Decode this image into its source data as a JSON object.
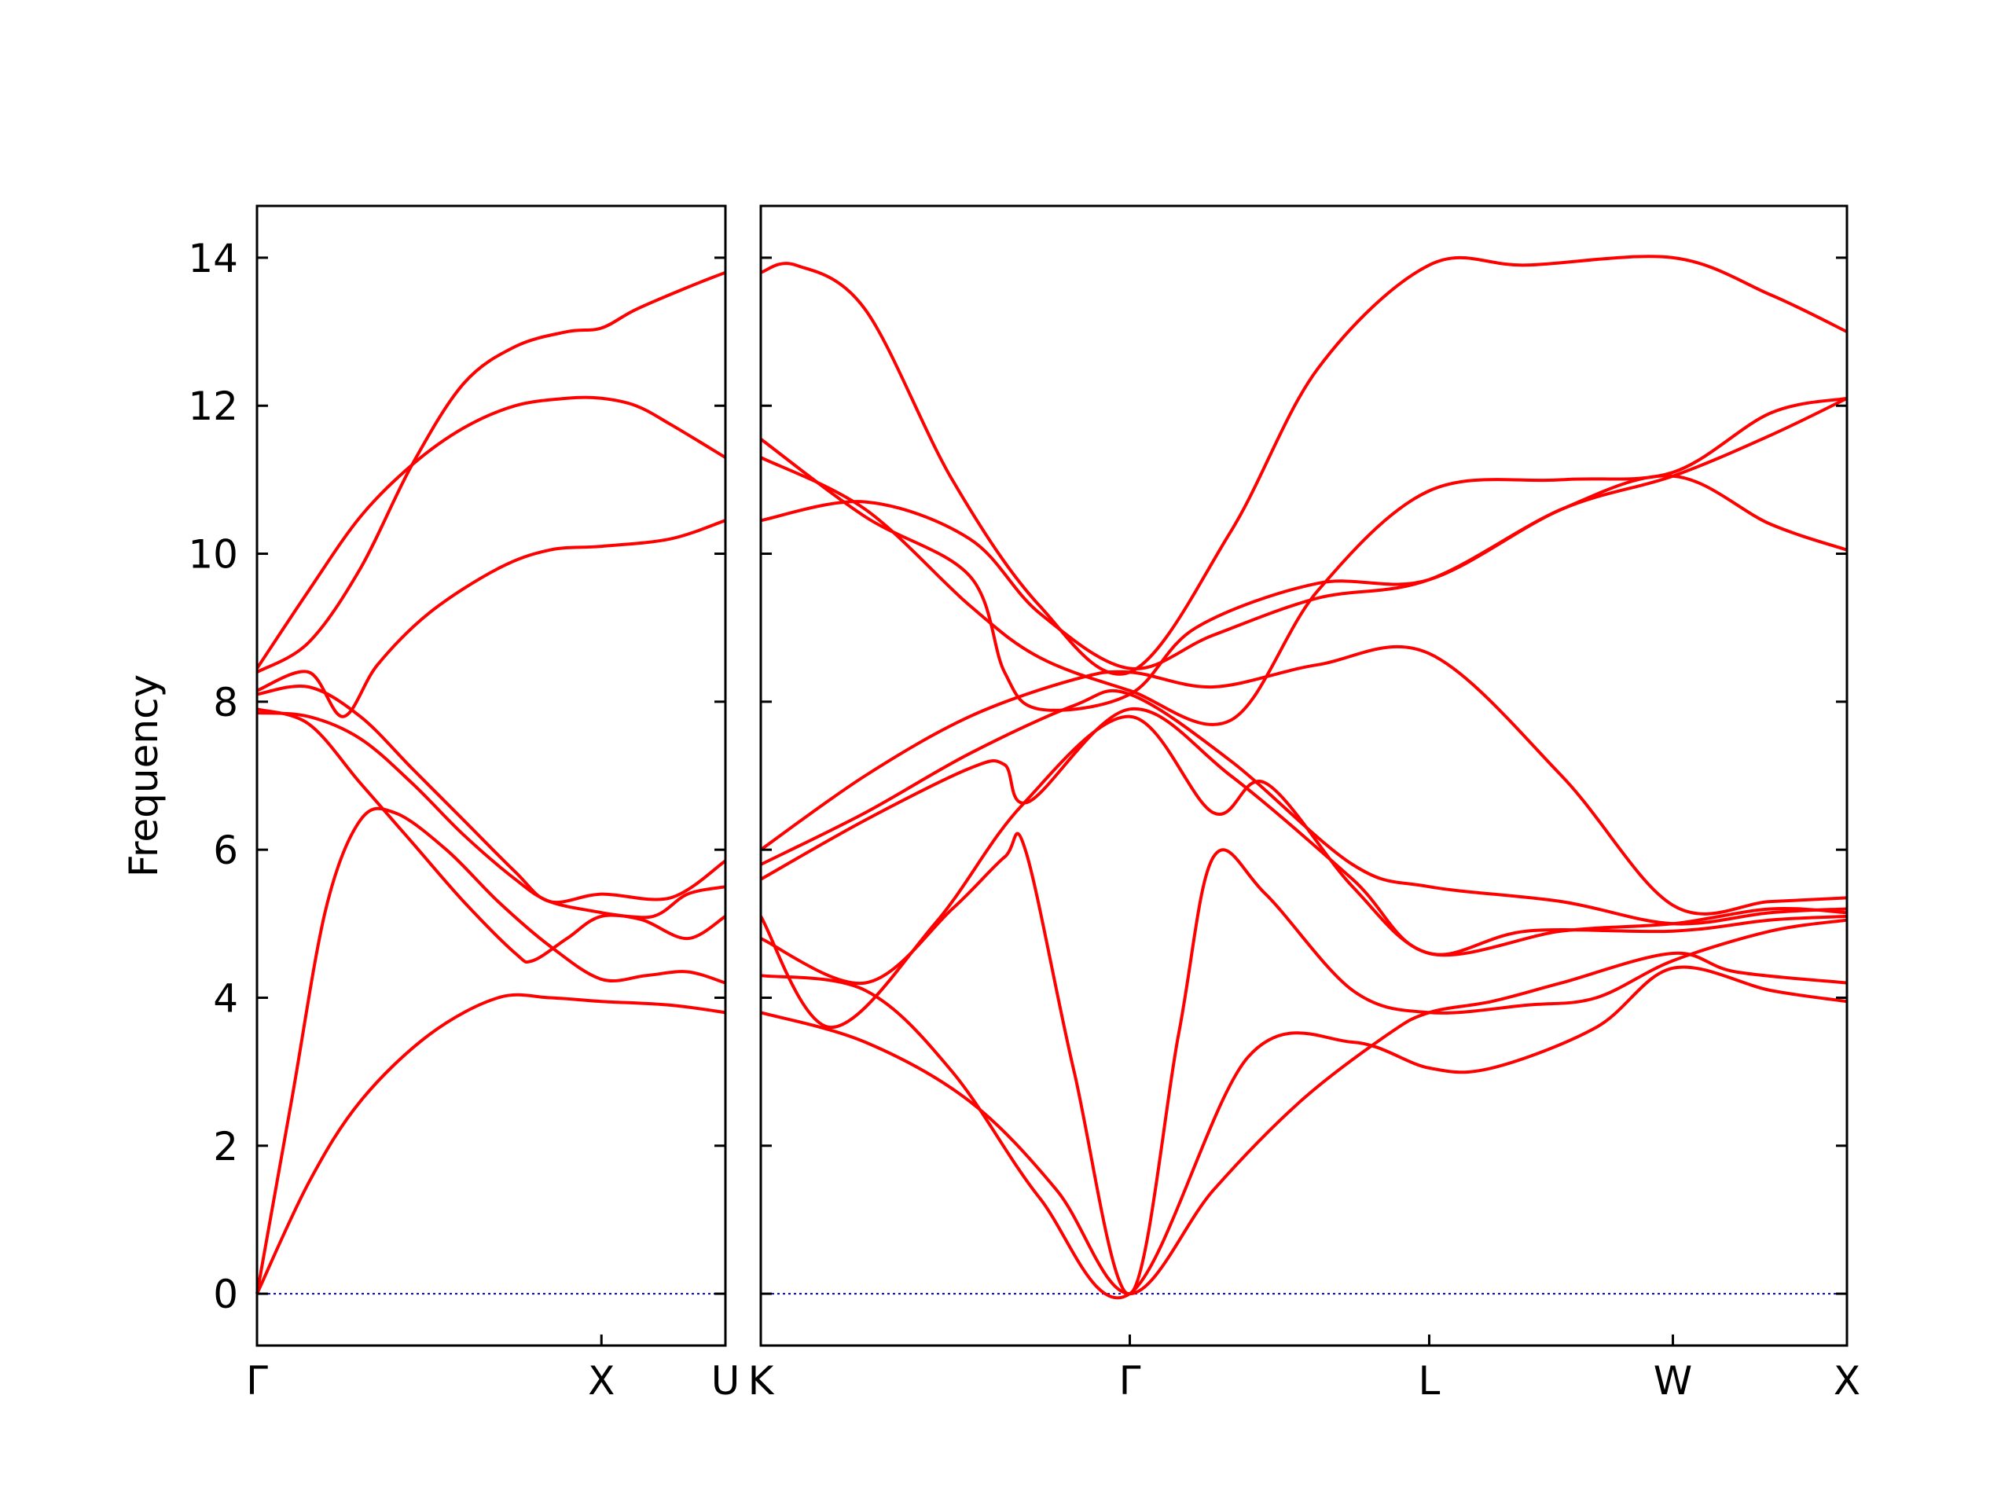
{
  "chart_data": {
    "type": "line",
    "title": "",
    "ylabel": "Frequency",
    "xlabel": "",
    "ylim": [
      -0.7,
      14.7
    ],
    "yticks": [
      0,
      2,
      4,
      6,
      8,
      10,
      12,
      14
    ],
    "line_color": "#ff0000",
    "zero_line_color": "#0000cc",
    "panels": [
      {
        "id": "panel-1",
        "xticks": [
          {
            "x": 0.0,
            "label": "Γ"
          },
          {
            "x": 1.0,
            "label": "X"
          },
          {
            "x": 1.36,
            "label": "U"
          }
        ],
        "series": [
          {
            "values": [
              [
                0,
                0
              ],
              [
                0.1,
                2.6
              ],
              [
                0.2,
                5.2
              ],
              [
                0.3,
                6.4
              ],
              [
                0.4,
                6.5
              ],
              [
                0.55,
                6.0
              ],
              [
                0.7,
                5.3
              ],
              [
                0.85,
                4.7
              ],
              [
                1.0,
                4.25
              ],
              [
                1.13,
                4.3
              ],
              [
                1.25,
                4.35
              ],
              [
                1.36,
                4.2
              ]
            ]
          },
          {
            "values": [
              [
                0,
                0
              ],
              [
                0.15,
                1.5
              ],
              [
                0.3,
                2.6
              ],
              [
                0.5,
                3.5
              ],
              [
                0.7,
                4.0
              ],
              [
                0.85,
                4.0
              ],
              [
                1.0,
                3.95
              ],
              [
                1.2,
                3.9
              ],
              [
                1.36,
                3.8
              ]
            ]
          },
          {
            "values": [
              [
                0,
                7.9
              ],
              [
                0.15,
                7.7
              ],
              [
                0.3,
                6.9
              ],
              [
                0.45,
                6.1
              ],
              [
                0.6,
                5.3
              ],
              [
                0.75,
                4.6
              ],
              [
                0.8,
                4.5
              ],
              [
                0.9,
                4.8
              ],
              [
                1.0,
                5.1
              ],
              [
                1.15,
                5.1
              ],
              [
                1.25,
                5.4
              ],
              [
                1.36,
                5.5
              ]
            ]
          },
          {
            "values": [
              [
                0,
                7.85
              ],
              [
                0.15,
                7.8
              ],
              [
                0.3,
                7.5
              ],
              [
                0.45,
                6.9
              ],
              [
                0.6,
                6.2
              ],
              [
                0.75,
                5.6
              ],
              [
                0.85,
                5.3
              ],
              [
                1.0,
                5.15
              ],
              [
                1.12,
                5.05
              ],
              [
                1.25,
                4.8
              ],
              [
                1.36,
                5.1
              ]
            ]
          },
          {
            "values": [
              [
                0,
                8.1
              ],
              [
                0.15,
                8.2
              ],
              [
                0.3,
                7.8
              ],
              [
                0.45,
                7.1
              ],
              [
                0.6,
                6.4
              ],
              [
                0.75,
                5.7
              ],
              [
                0.85,
                5.3
              ],
              [
                1.0,
                5.4
              ],
              [
                1.2,
                5.35
              ],
              [
                1.36,
                5.85
              ]
            ]
          },
          {
            "values": [
              [
                0,
                8.15
              ],
              [
                0.15,
                8.4
              ],
              [
                0.25,
                7.8
              ],
              [
                0.35,
                8.5
              ],
              [
                0.5,
                9.2
              ],
              [
                0.7,
                9.8
              ],
              [
                0.85,
                10.05
              ],
              [
                1.0,
                10.1
              ],
              [
                1.2,
                10.2
              ],
              [
                1.36,
                10.45
              ]
            ]
          },
          {
            "values": [
              [
                0,
                8.45
              ],
              [
                0.15,
                9.5
              ],
              [
                0.3,
                10.5
              ],
              [
                0.45,
                11.2
              ],
              [
                0.6,
                11.7
              ],
              [
                0.75,
                12.0
              ],
              [
                0.9,
                12.1
              ],
              [
                1.0,
                12.1
              ],
              [
                1.1,
                12.0
              ],
              [
                1.2,
                11.75
              ],
              [
                1.36,
                11.3
              ]
            ]
          },
          {
            "values": [
              [
                0,
                8.4
              ],
              [
                0.15,
                8.8
              ],
              [
                0.3,
                9.8
              ],
              [
                0.45,
                11.2
              ],
              [
                0.6,
                12.3
              ],
              [
                0.75,
                12.8
              ],
              [
                0.9,
                13.0
              ],
              [
                1.0,
                13.05
              ],
              [
                1.1,
                13.3
              ],
              [
                1.25,
                13.6
              ],
              [
                1.36,
                13.8
              ]
            ]
          }
        ]
      },
      {
        "id": "panel-2",
        "xticks": [
          {
            "x": 0.0,
            "label": "K"
          },
          {
            "x": 1.06,
            "label": "Γ"
          },
          {
            "x": 1.92,
            "label": "L"
          },
          {
            "x": 2.62,
            "label": "W"
          },
          {
            "x": 3.12,
            "label": "X"
          }
        ],
        "series": [
          {
            "values": [
              [
                0,
                3.8
              ],
              [
                0.3,
                3.4
              ],
              [
                0.6,
                2.6
              ],
              [
                0.85,
                1.4
              ],
              [
                1.06,
                0
              ],
              [
                1.3,
                1.4
              ],
              [
                1.55,
                2.6
              ],
              [
                1.8,
                3.5
              ],
              [
                1.92,
                3.8
              ],
              [
                2.1,
                3.95
              ],
              [
                2.3,
                4.2
              ],
              [
                2.62,
                4.6
              ],
              [
                2.8,
                4.35
              ],
              [
                3.12,
                4.2
              ]
            ]
          },
          {
            "values": [
              [
                0,
                4.3
              ],
              [
                0.3,
                4.1
              ],
              [
                0.55,
                3.0
              ],
              [
                0.8,
                1.3
              ],
              [
                1.06,
                0
              ],
              [
                1.4,
                3.2
              ],
              [
                1.7,
                3.4
              ],
              [
                1.92,
                3.05
              ],
              [
                2.1,
                3.05
              ],
              [
                2.4,
                3.6
              ],
              [
                2.62,
                4.4
              ],
              [
                2.9,
                4.1
              ],
              [
                3.12,
                3.95
              ]
            ]
          },
          {
            "values": [
              [
                0,
                4.8
              ],
              [
                0.3,
                4.2
              ],
              [
                0.55,
                5.2
              ],
              [
                0.7,
                5.9
              ],
              [
                0.76,
                6.0
              ],
              [
                0.9,
                3.0
              ],
              [
                1.06,
                0
              ],
              [
                1.2,
                3.5
              ],
              [
                1.3,
                5.9
              ],
              [
                1.45,
                5.4
              ],
              [
                1.7,
                4.1
              ],
              [
                1.92,
                3.8
              ],
              [
                2.2,
                3.9
              ],
              [
                2.4,
                4.0
              ],
              [
                2.62,
                4.5
              ],
              [
                2.9,
                4.9
              ],
              [
                3.12,
                5.05
              ]
            ]
          },
          {
            "values": [
              [
                0,
                5.1
              ],
              [
                0.2,
                3.6
              ],
              [
                0.5,
                5.0
              ],
              [
                0.75,
                6.6
              ],
              [
                1.06,
                7.8
              ],
              [
                1.3,
                6.5
              ],
              [
                1.45,
                6.9
              ],
              [
                1.7,
                5.5
              ],
              [
                1.92,
                4.6
              ],
              [
                2.2,
                4.9
              ],
              [
                2.62,
                4.9
              ],
              [
                2.9,
                5.05
              ],
              [
                3.12,
                5.1
              ]
            ]
          },
          {
            "values": [
              [
                0,
                5.6
              ],
              [
                0.3,
                6.4
              ],
              [
                0.6,
                7.1
              ],
              [
                0.7,
                7.15
              ],
              [
                0.77,
                6.65
              ],
              [
                1.06,
                7.9
              ],
              [
                1.35,
                7.0
              ],
              [
                1.7,
                5.6
              ],
              [
                1.92,
                4.6
              ],
              [
                2.3,
                4.9
              ],
              [
                2.62,
                5.0
              ],
              [
                2.9,
                5.2
              ],
              [
                3.12,
                5.15
              ]
            ]
          },
          {
            "values": [
              [
                0,
                5.8
              ],
              [
                0.3,
                6.5
              ],
              [
                0.6,
                7.3
              ],
              [
                0.9,
                7.95
              ],
              [
                1.06,
                8.1
              ],
              [
                1.35,
                7.2
              ],
              [
                1.7,
                5.8
              ],
              [
                1.92,
                5.5
              ],
              [
                2.3,
                5.3
              ],
              [
                2.62,
                5.0
              ],
              [
                2.9,
                5.15
              ],
              [
                3.12,
                5.2
              ]
            ]
          },
          {
            "values": [
              [
                0,
                6.0
              ],
              [
                0.3,
                7.0
              ],
              [
                0.6,
                7.8
              ],
              [
                0.9,
                8.3
              ],
              [
                1.06,
                8.4
              ],
              [
                1.3,
                8.2
              ],
              [
                1.6,
                8.5
              ],
              [
                1.92,
                8.65
              ],
              [
                2.3,
                7.0
              ],
              [
                2.62,
                5.25
              ],
              [
                2.9,
                5.3
              ],
              [
                3.12,
                5.35
              ]
            ]
          },
          {
            "values": [
              [
                0,
                10.45
              ],
              [
                0.3,
                10.7
              ],
              [
                0.6,
                10.2
              ],
              [
                0.8,
                9.2
              ],
              [
                1.06,
                8.45
              ],
              [
                1.3,
                8.9
              ],
              [
                1.6,
                9.4
              ],
              [
                1.92,
                9.65
              ],
              [
                2.3,
                10.6
              ],
              [
                2.62,
                11.05
              ],
              [
                2.9,
                11.6
              ],
              [
                3.12,
                12.1
              ]
            ]
          },
          {
            "values": [
              [
                0,
                11.3
              ],
              [
                0.3,
                10.6
              ],
              [
                0.6,
                9.3
              ],
              [
                0.8,
                8.6
              ],
              [
                1.06,
                8.15
              ],
              [
                1.35,
                7.75
              ],
              [
                1.6,
                9.5
              ],
              [
                1.92,
                10.85
              ],
              [
                2.3,
                11.0
              ],
              [
                2.62,
                11.1
              ],
              [
                2.9,
                11.9
              ],
              [
                3.12,
                12.1
              ]
            ]
          },
          {
            "values": [
              [
                0,
                11.55
              ],
              [
                0.3,
                10.5
              ],
              [
                0.6,
                9.7
              ],
              [
                0.7,
                8.4
              ],
              [
                0.8,
                7.9
              ],
              [
                1.06,
                8.1
              ],
              [
                1.25,
                9.0
              ],
              [
                1.6,
                9.6
              ],
              [
                1.92,
                9.65
              ],
              [
                2.3,
                10.6
              ],
              [
                2.62,
                11.05
              ],
              [
                2.9,
                10.4
              ],
              [
                3.12,
                10.05
              ]
            ]
          },
          {
            "values": [
              [
                0,
                13.8
              ],
              [
                0.1,
                13.9
              ],
              [
                0.3,
                13.3
              ],
              [
                0.55,
                11.0
              ],
              [
                0.8,
                9.3
              ],
              [
                1.06,
                8.4
              ],
              [
                1.35,
                10.3
              ],
              [
                1.6,
                12.5
              ],
              [
                1.92,
                13.9
              ],
              [
                2.2,
                13.9
              ],
              [
                2.62,
                14.0
              ],
              [
                2.9,
                13.5
              ],
              [
                3.12,
                13.0
              ]
            ]
          }
        ]
      }
    ]
  }
}
